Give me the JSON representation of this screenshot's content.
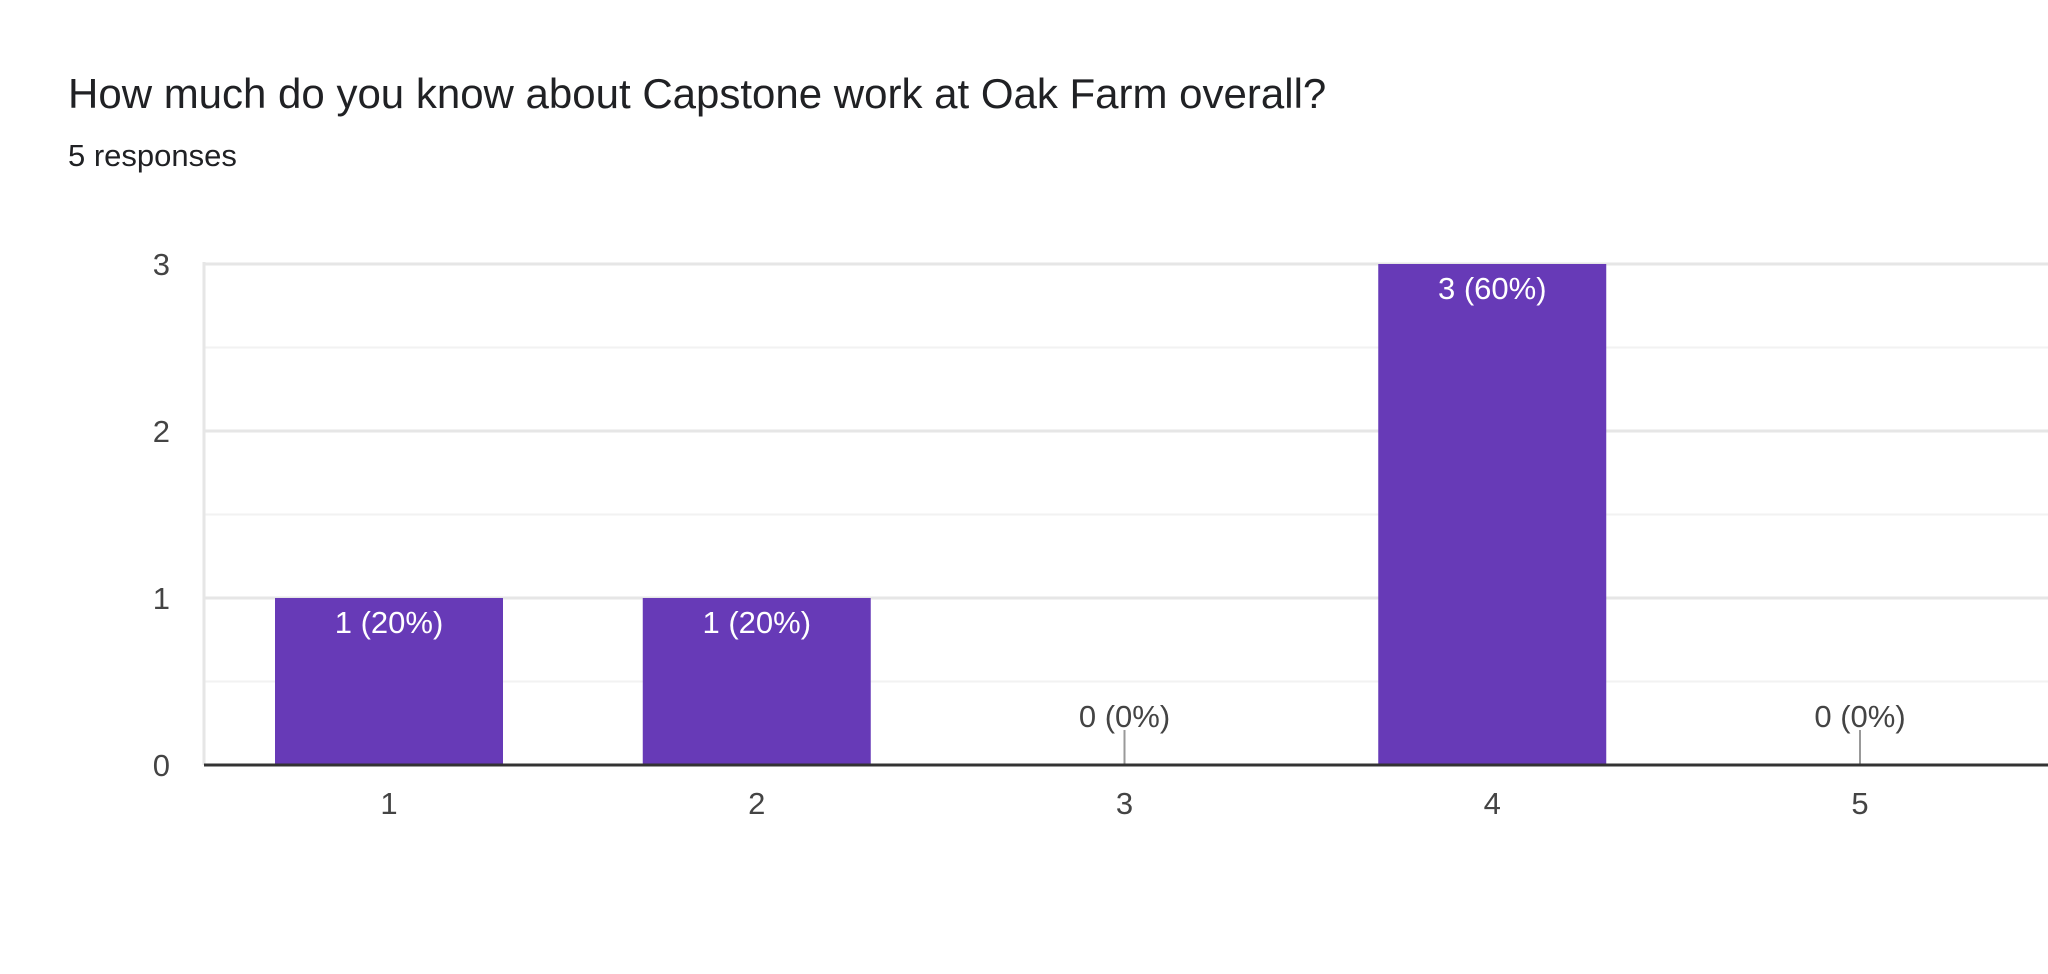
{
  "question": {
    "title": "How much do you know about Capstone work at Oak Farm overall?",
    "response_count": "5 responses"
  },
  "colors": {
    "bar": "#673ab7",
    "gridline_major": "#e6e6e6",
    "gridline_minor": "#f2f2f2",
    "axis": "#333333",
    "text": "#202124"
  },
  "chart_data": {
    "type": "bar",
    "title": "How much do you know about Capstone work at Oak Farm overall?",
    "xlabel": "",
    "ylabel": "",
    "categories": [
      "1",
      "2",
      "3",
      "4",
      "5"
    ],
    "values": [
      1,
      1,
      0,
      3,
      0
    ],
    "data_labels": [
      "1 (20%)",
      "1 (20%)",
      "0 (0%)",
      "3 (60%)",
      "0 (0%)"
    ],
    "y_ticks": [
      "0",
      "1",
      "2",
      "3"
    ],
    "ylim": [
      0,
      3
    ],
    "grid": true,
    "legend": "none"
  }
}
